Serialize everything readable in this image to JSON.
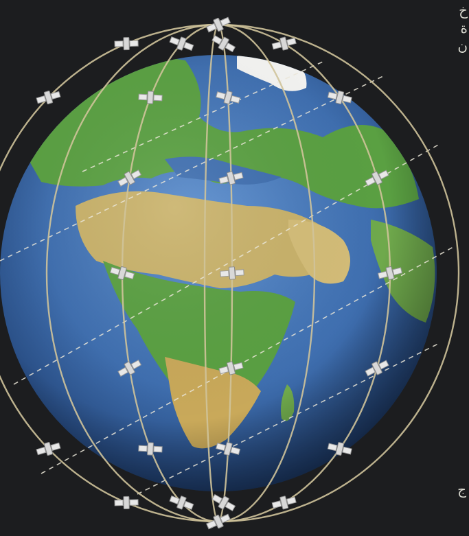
{
  "image": {
    "subject": "iridium-satellite-constellation",
    "colors": {
      "background": "#1c1d1f",
      "ocean": "#3f6fb0",
      "land_green": "#5aa042",
      "land_desert": "#c9b26a",
      "orbit_line": "#cfc39a",
      "satellite": "#e4e4e4",
      "ground_track": "#eae6d8"
    }
  },
  "side_text": {
    "top_lines": [
      "خ",
      "ة",
      "ن"
    ],
    "bottom_lines": [
      "ج"
    ]
  }
}
